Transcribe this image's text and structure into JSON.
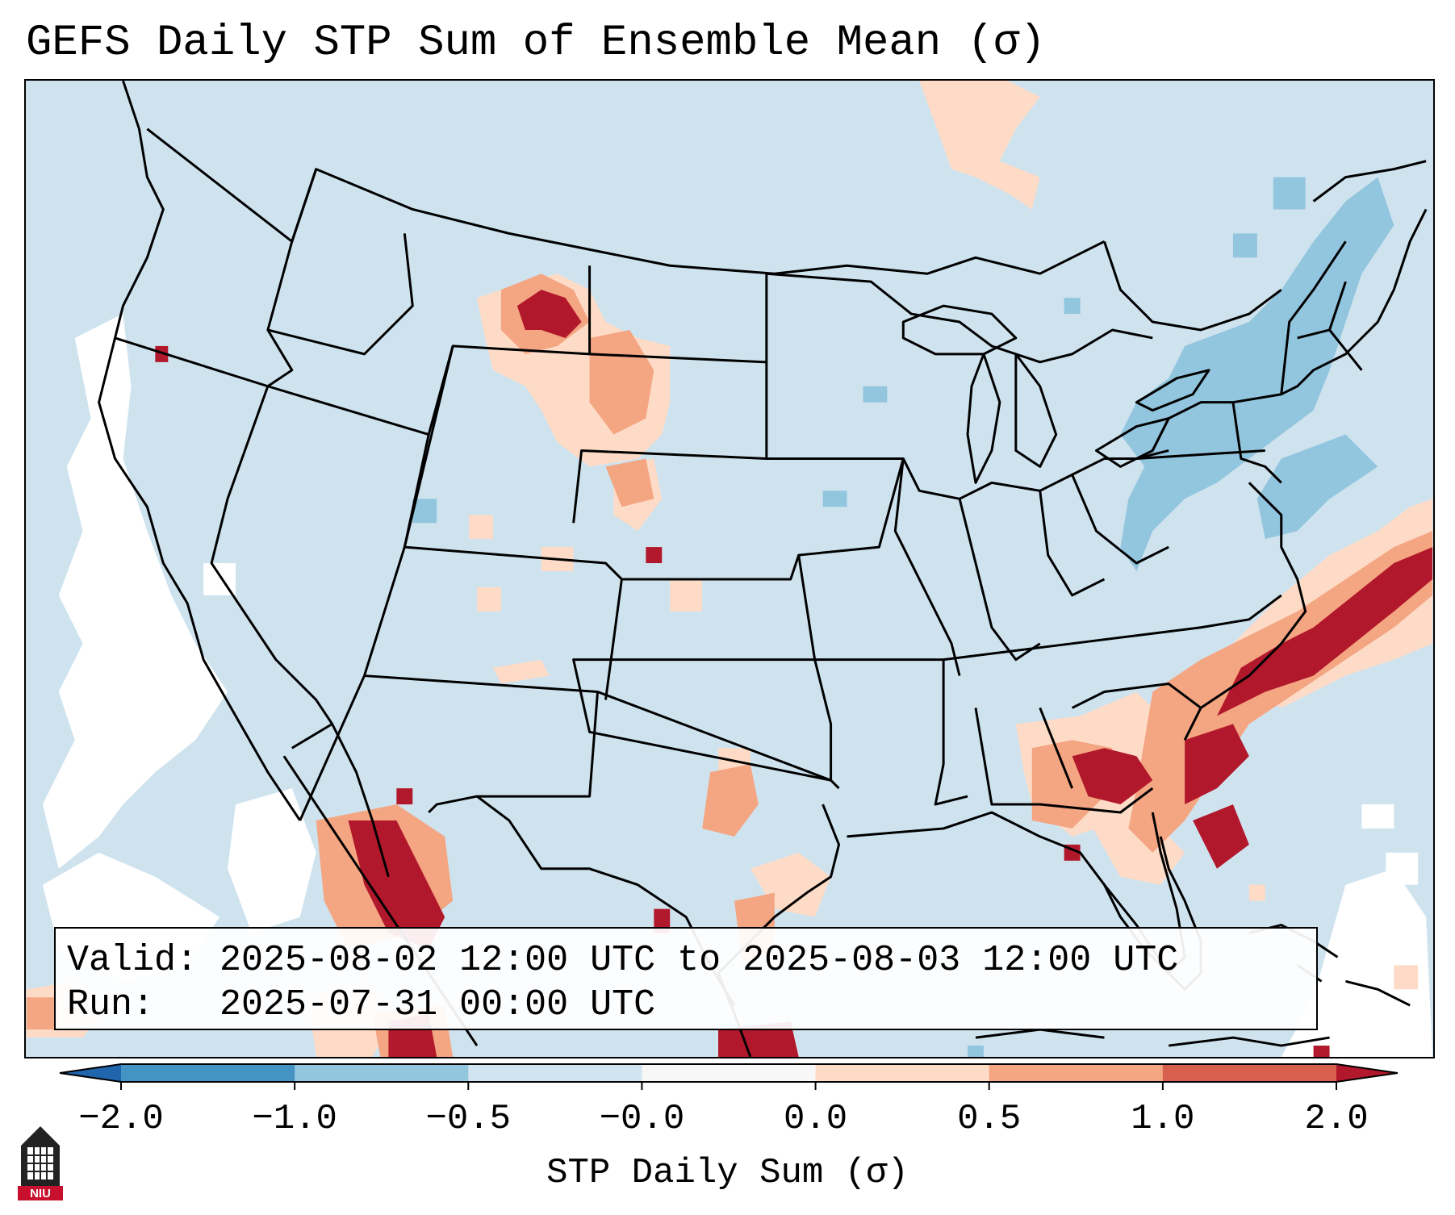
{
  "title": "GEFS Daily STP Sum of Ensemble Mean (σ)",
  "info": {
    "valid_label": "Valid:",
    "valid_value": "2025-08-02 12:00 UTC to 2025-08-03 12:00 UTC",
    "run_label": "Run:",
    "run_value": "2025-07-31 00:00 UTC"
  },
  "colorbar": {
    "label": "STP Daily Sum (σ)",
    "ticks": [
      "−2.0",
      "−1.0",
      "−0.5",
      "−0.0",
      "0.0",
      "0.5",
      "1.0",
      "2.0"
    ],
    "colors": {
      "under": "#2166ac",
      "bins": [
        "#4393c3",
        "#92c5de",
        "#d1e5f0",
        "#f7f7f7",
        "#fddbc7",
        "#f4a582",
        "#d6604d"
      ],
      "over": "#b2182b"
    }
  },
  "map_colors": {
    "background": "#cfe3ef",
    "white": "#ffffff",
    "light_blue": "#92c5de",
    "light_red": "#fddbc7",
    "mid_red": "#f4a582",
    "red": "#d6604d",
    "dark_red": "#b2182b",
    "outline": "#000000"
  },
  "logo": {
    "text": "NIU"
  }
}
